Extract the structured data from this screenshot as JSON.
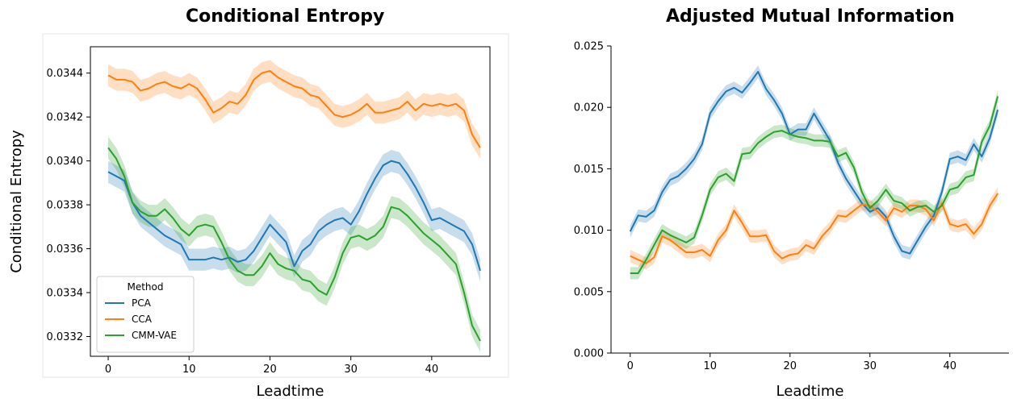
{
  "colors": {
    "PCA": "#1f77b4",
    "CCA": "#ff7f0e",
    "CMM-VAE": "#2ca02c"
  },
  "chart_data": [
    {
      "type": "line",
      "title": "Conditional Entropy",
      "xlabel": "Leadtime",
      "ylabel": "Conditional Entropy",
      "xlim": [
        -2.2,
        47.2
      ],
      "ylim": [
        0.03311,
        0.03452
      ],
      "xticks": [
        0,
        10,
        20,
        30,
        40
      ],
      "xtick_labels": [
        "0",
        "10",
        "20",
        "30",
        "40"
      ],
      "yticks": [
        0.0332,
        0.0334,
        0.0336,
        0.0338,
        0.034,
        0.0342,
        0.0344
      ],
      "ytick_labels": [
        "0.0332",
        "0.0334",
        "0.0336",
        "0.0338",
        "0.0340",
        "0.0342",
        "0.0344"
      ],
      "legend": {
        "title": "Method",
        "position": "lower-left"
      },
      "band": 5e-05,
      "x": [
        0,
        1,
        2,
        3,
        4,
        5,
        6,
        7,
        8,
        9,
        10,
        11,
        12,
        13,
        14,
        15,
        16,
        17,
        18,
        19,
        20,
        21,
        22,
        23,
        24,
        25,
        26,
        27,
        28,
        29,
        30,
        31,
        32,
        33,
        34,
        35,
        36,
        37,
        38,
        39,
        40,
        41,
        42,
        43,
        44,
        45,
        46
      ],
      "series": [
        {
          "name": "PCA",
          "values": [
            0.03395,
            0.03393,
            0.03391,
            0.03381,
            0.03375,
            0.03372,
            0.03369,
            0.03366,
            0.03364,
            0.03362,
            0.03355,
            0.03355,
            0.03355,
            0.03356,
            0.03355,
            0.03356,
            0.03354,
            0.03355,
            0.03359,
            0.03365,
            0.03371,
            0.03367,
            0.03363,
            0.03352,
            0.03359,
            0.03362,
            0.03368,
            0.03371,
            0.03373,
            0.03374,
            0.03371,
            0.03377,
            0.03385,
            0.03392,
            0.03398,
            0.034,
            0.03399,
            0.03394,
            0.03388,
            0.03381,
            0.03373,
            0.03374,
            0.03372,
            0.0337,
            0.03368,
            0.03362,
            0.0335
          ]
        },
        {
          "name": "CCA",
          "values": [
            0.03439,
            0.03437,
            0.03437,
            0.03436,
            0.03432,
            0.03433,
            0.03435,
            0.03436,
            0.03434,
            0.03433,
            0.03435,
            0.03433,
            0.03428,
            0.03422,
            0.03424,
            0.03427,
            0.03426,
            0.0343,
            0.03437,
            0.0344,
            0.03441,
            0.03438,
            0.03436,
            0.03434,
            0.03433,
            0.0343,
            0.03429,
            0.03425,
            0.03421,
            0.0342,
            0.03421,
            0.03423,
            0.03426,
            0.03422,
            0.03422,
            0.03423,
            0.03424,
            0.03427,
            0.03423,
            0.03426,
            0.03425,
            0.03426,
            0.03425,
            0.03426,
            0.03423,
            0.03412,
            0.03406
          ]
        },
        {
          "name": "CMM-VAE",
          "values": [
            0.03406,
            0.03401,
            0.03393,
            0.03381,
            0.03377,
            0.03375,
            0.03375,
            0.03378,
            0.03374,
            0.03369,
            0.03366,
            0.0337,
            0.03371,
            0.0337,
            0.03363,
            0.03355,
            0.0335,
            0.03348,
            0.03348,
            0.03352,
            0.03358,
            0.03353,
            0.03351,
            0.0335,
            0.03346,
            0.03345,
            0.03341,
            0.03339,
            0.03347,
            0.03358,
            0.03365,
            0.03366,
            0.03364,
            0.03366,
            0.0337,
            0.03379,
            0.03378,
            0.03375,
            0.03371,
            0.03367,
            0.03364,
            0.03361,
            0.03357,
            0.03353,
            0.0334,
            0.03325,
            0.03318
          ]
        }
      ]
    },
    {
      "type": "line",
      "title": "Adjusted Mutual Information",
      "xlabel": "Leadtime",
      "ylabel": "",
      "xlim": [
        -2.4,
        47.4
      ],
      "ylim": [
        0.0,
        0.025
      ],
      "xticks": [
        0,
        10,
        20,
        30,
        40
      ],
      "xtick_labels": [
        "0",
        "10",
        "20",
        "30",
        "40"
      ],
      "yticks": [
        0.0,
        0.005,
        0.01,
        0.015,
        0.02,
        0.025
      ],
      "ytick_labels": [
        "0.000",
        "0.005",
        "0.010",
        "0.015",
        "0.020",
        "0.025"
      ],
      "band": 0.0005,
      "x": [
        0,
        1,
        2,
        3,
        4,
        5,
        6,
        7,
        8,
        9,
        10,
        11,
        12,
        13,
        14,
        15,
        16,
        17,
        18,
        19,
        20,
        21,
        22,
        23,
        24,
        25,
        26,
        27,
        28,
        29,
        30,
        31,
        32,
        33,
        34,
        35,
        36,
        37,
        38,
        39,
        40,
        41,
        42,
        43,
        44,
        45,
        46
      ],
      "series": [
        {
          "name": "PCA",
          "values": [
            0.0099,
            0.0112,
            0.0111,
            0.0116,
            0.0131,
            0.0141,
            0.0144,
            0.015,
            0.0158,
            0.017,
            0.0195,
            0.0205,
            0.0213,
            0.0216,
            0.0212,
            0.022,
            0.0229,
            0.0215,
            0.0206,
            0.0195,
            0.0178,
            0.0182,
            0.0182,
            0.0195,
            0.0184,
            0.0173,
            0.0155,
            0.0142,
            0.0132,
            0.0122,
            0.0115,
            0.0118,
            0.0111,
            0.0095,
            0.0083,
            0.0081,
            0.0092,
            0.0103,
            0.0112,
            0.0131,
            0.0158,
            0.016,
            0.0157,
            0.017,
            0.016,
            0.0175,
            0.0198
          ]
        },
        {
          "name": "CCA",
          "values": [
            0.0079,
            0.0076,
            0.0073,
            0.0078,
            0.0095,
            0.0092,
            0.0087,
            0.0082,
            0.0082,
            0.0084,
            0.0079,
            0.0092,
            0.01,
            0.0116,
            0.0106,
            0.0095,
            0.0095,
            0.0096,
            0.0083,
            0.0077,
            0.008,
            0.0081,
            0.0088,
            0.0085,
            0.0095,
            0.0102,
            0.0112,
            0.0111,
            0.0116,
            0.0121,
            0.012,
            0.0115,
            0.0108,
            0.0118,
            0.0115,
            0.012,
            0.012,
            0.0117,
            0.0108,
            0.0122,
            0.0105,
            0.0103,
            0.0105,
            0.0097,
            0.0105,
            0.012,
            0.013
          ]
        },
        {
          "name": "CMM-VAE",
          "values": [
            0.0065,
            0.0065,
            0.0076,
            0.0088,
            0.01,
            0.0096,
            0.0093,
            0.009,
            0.0094,
            0.0112,
            0.0133,
            0.0143,
            0.0146,
            0.014,
            0.0162,
            0.0163,
            0.0171,
            0.0176,
            0.018,
            0.0181,
            0.0178,
            0.0176,
            0.0175,
            0.0173,
            0.0173,
            0.0172,
            0.016,
            0.0163,
            0.0151,
            0.0131,
            0.0118,
            0.0124,
            0.0133,
            0.0124,
            0.0122,
            0.0116,
            0.0119,
            0.012,
            0.0115,
            0.012,
            0.0133,
            0.0135,
            0.0143,
            0.0145,
            0.0172,
            0.0185,
            0.0209
          ]
        }
      ]
    }
  ]
}
